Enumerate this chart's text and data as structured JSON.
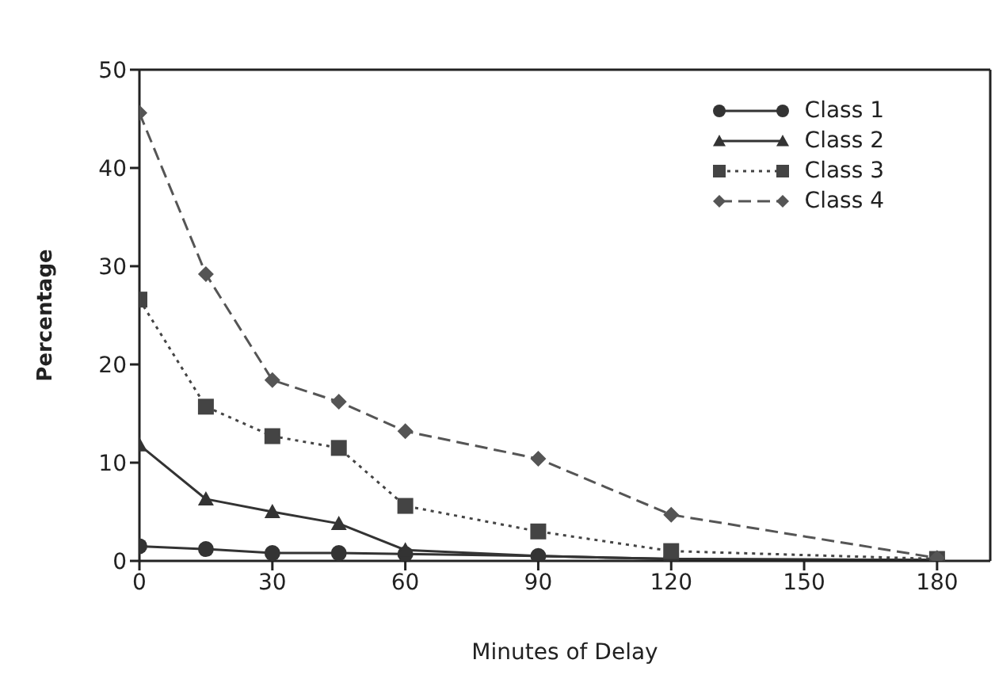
{
  "chart_data": {
    "type": "line",
    "xlabel": "Minutes of Delay",
    "ylabel": "Percentage",
    "x": [
      0,
      15,
      30,
      45,
      60,
      90,
      120,
      180
    ],
    "series": [
      {
        "name": "Class 1",
        "color": "#333333",
        "marker": "circle",
        "line_style": "solid",
        "values": [
          1.5,
          1.2,
          0.8,
          0.8,
          0.7,
          0.5,
          0.2,
          0.1
        ]
      },
      {
        "name": "Class 2",
        "color": "#333333",
        "marker": "triangle",
        "line_style": "solid",
        "values": [
          11.8,
          6.3,
          5.0,
          3.8,
          1.1,
          0.5,
          0.2,
          0.1
        ]
      },
      {
        "name": "Class 3",
        "color": "#444444",
        "marker": "square",
        "line_style": "dotted",
        "values": [
          26.6,
          15.7,
          12.7,
          11.5,
          5.6,
          3.0,
          1.0,
          0.2
        ]
      },
      {
        "name": "Class 4",
        "color": "#555555",
        "marker": "diamond",
        "line_style": "dashed",
        "values": [
          45.6,
          29.2,
          18.4,
          16.2,
          13.2,
          10.4,
          4.7,
          0.3
        ]
      }
    ],
    "xlim": [
      0,
      192
    ],
    "xticks": [
      0,
      30,
      60,
      90,
      120,
      150,
      180
    ],
    "ylim": [
      0,
      50
    ],
    "yticks": [
      0,
      10,
      20,
      30,
      40,
      50
    ],
    "grid": false,
    "legend": "top right"
  }
}
